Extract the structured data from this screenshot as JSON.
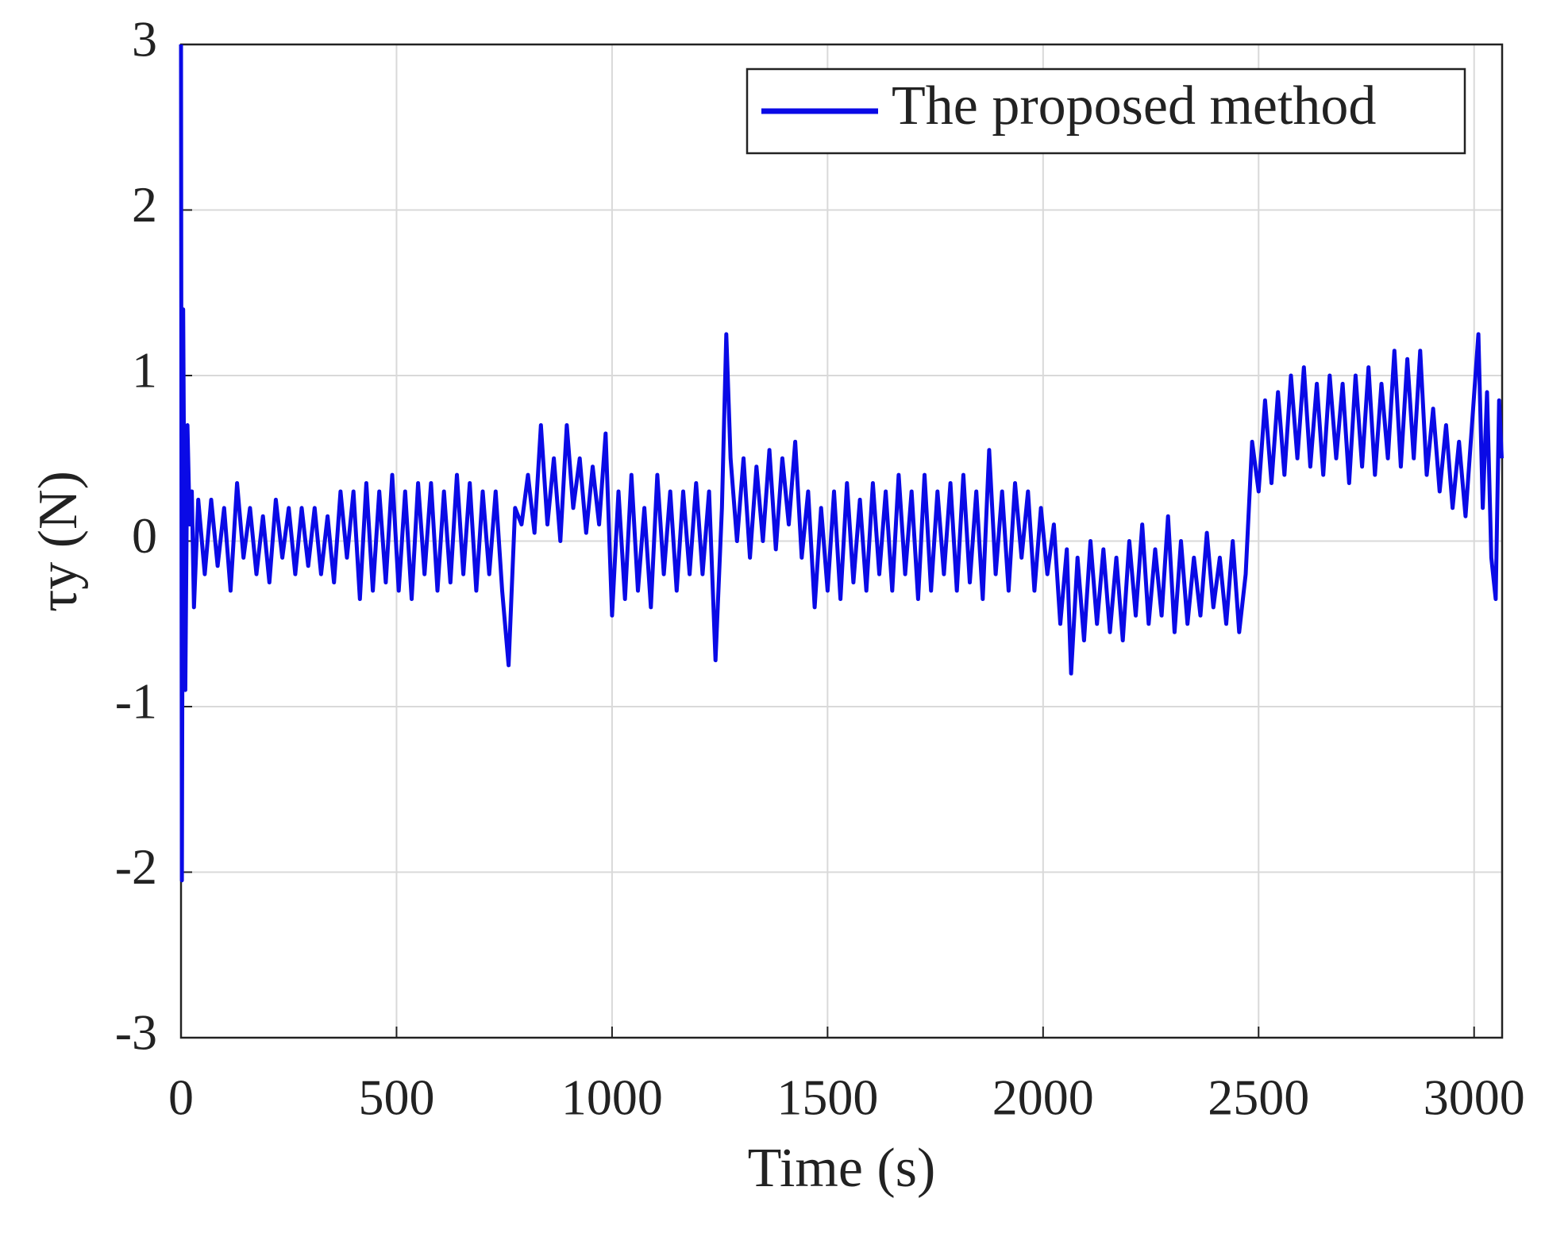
{
  "chart_data": {
    "type": "line",
    "xlabel": "Time (s)",
    "ylabel": "τy (N)",
    "xlim": [
      0,
      3065
    ],
    "ylim": [
      -3,
      3
    ],
    "xticks": [
      0,
      500,
      1000,
      1500,
      2000,
      2500,
      3000
    ],
    "yticks": [
      -3,
      -2,
      -1,
      0,
      1,
      2,
      3
    ],
    "grid": true,
    "legend": "upper right",
    "x": [
      0,
      2,
      5,
      10,
      15,
      20,
      25,
      30,
      40,
      55,
      70,
      85,
      100,
      115,
      130,
      145,
      160,
      175,
      190,
      205,
      220,
      235,
      250,
      265,
      280,
      295,
      310,
      325,
      340,
      355,
      370,
      385,
      400,
      415,
      430,
      445,
      460,
      475,
      490,
      505,
      520,
      535,
      550,
      565,
      580,
      595,
      610,
      625,
      640,
      655,
      670,
      685,
      700,
      715,
      730,
      745,
      760,
      775,
      790,
      805,
      820,
      835,
      850,
      865,
      880,
      895,
      910,
      925,
      940,
      955,
      970,
      985,
      1000,
      1015,
      1030,
      1045,
      1060,
      1075,
      1090,
      1105,
      1120,
      1135,
      1150,
      1165,
      1180,
      1195,
      1210,
      1225,
      1240,
      1255,
      1265,
      1275,
      1290,
      1305,
      1320,
      1335,
      1350,
      1365,
      1380,
      1395,
      1410,
      1425,
      1440,
      1455,
      1470,
      1485,
      1500,
      1515,
      1530,
      1545,
      1560,
      1575,
      1590,
      1605,
      1620,
      1635,
      1650,
      1665,
      1680,
      1695,
      1710,
      1725,
      1740,
      1755,
      1770,
      1785,
      1800,
      1815,
      1830,
      1845,
      1860,
      1875,
      1890,
      1905,
      1920,
      1935,
      1950,
      1965,
      1980,
      1995,
      2010,
      2025,
      2040,
      2055,
      2065,
      2080,
      2095,
      2110,
      2125,
      2140,
      2155,
      2170,
      2185,
      2200,
      2215,
      2230,
      2245,
      2260,
      2275,
      2290,
      2305,
      2320,
      2335,
      2350,
      2365,
      2380,
      2395,
      2410,
      2425,
      2440,
      2455,
      2470,
      2485,
      2500,
      2515,
      2530,
      2545,
      2560,
      2575,
      2590,
      2605,
      2620,
      2635,
      2650,
      2665,
      2680,
      2695,
      2710,
      2725,
      2740,
      2755,
      2770,
      2785,
      2800,
      2815,
      2830,
      2845,
      2860,
      2875,
      2890,
      2905,
      2920,
      2935,
      2950,
      2965,
      2980,
      2995,
      3010,
      3020,
      3030,
      3040,
      3050,
      3058,
      3064
    ],
    "series": [
      {
        "name": "The proposed method",
        "color": "#0a0ae6",
        "values": [
          3,
          -2.05,
          1.4,
          -0.9,
          0.7,
          0.1,
          0.3,
          -0.4,
          0.25,
          -0.2,
          0.25,
          -0.15,
          0.2,
          -0.3,
          0.35,
          -0.1,
          0.2,
          -0.2,
          0.15,
          -0.25,
          0.25,
          -0.1,
          0.2,
          -0.2,
          0.2,
          -0.15,
          0.2,
          -0.2,
          0.15,
          -0.25,
          0.3,
          -0.1,
          0.3,
          -0.35,
          0.35,
          -0.3,
          0.3,
          -0.25,
          0.4,
          -0.3,
          0.3,
          -0.35,
          0.35,
          -0.2,
          0.35,
          -0.3,
          0.3,
          -0.25,
          0.4,
          -0.2,
          0.35,
          -0.3,
          0.3,
          -0.2,
          0.3,
          -0.3,
          -0.75,
          0.2,
          0.1,
          0.4,
          0.05,
          0.7,
          0.1,
          0.5,
          0.0,
          0.7,
          0.2,
          0.5,
          0.05,
          0.45,
          0.1,
          0.65,
          -0.45,
          0.3,
          -0.35,
          0.4,
          -0.3,
          0.2,
          -0.4,
          0.4,
          -0.2,
          0.3,
          -0.3,
          0.3,
          -0.2,
          0.35,
          -0.2,
          0.3,
          -0.72,
          0.2,
          1.25,
          0.5,
          0.0,
          0.5,
          -0.1,
          0.45,
          0.0,
          0.55,
          -0.05,
          0.5,
          0.1,
          0.6,
          -0.1,
          0.3,
          -0.4,
          0.2,
          -0.3,
          0.3,
          -0.35,
          0.35,
          -0.25,
          0.25,
          -0.3,
          0.35,
          -0.2,
          0.3,
          -0.3,
          0.4,
          -0.2,
          0.3,
          -0.35,
          0.4,
          -0.3,
          0.3,
          -0.2,
          0.35,
          -0.3,
          0.4,
          -0.25,
          0.3,
          -0.35,
          0.55,
          -0.2,
          0.3,
          -0.3,
          0.35,
          -0.1,
          0.3,
          -0.3,
          0.2,
          -0.2,
          0.1,
          -0.5,
          -0.05,
          -0.8,
          -0.1,
          -0.6,
          0.0,
          -0.5,
          -0.05,
          -0.55,
          -0.1,
          -0.6,
          0.0,
          -0.45,
          0.1,
          -0.5,
          -0.05,
          -0.45,
          0.15,
          -0.55,
          0.0,
          -0.5,
          -0.1,
          -0.45,
          0.05,
          -0.4,
          -0.1,
          -0.5,
          0.0,
          -0.55,
          -0.2,
          0.6,
          0.3,
          0.85,
          0.35,
          0.9,
          0.4,
          1.0,
          0.5,
          1.05,
          0.45,
          0.95,
          0.4,
          1.0,
          0.5,
          0.95,
          0.35,
          1.0,
          0.45,
          1.05,
          0.4,
          0.95,
          0.5,
          1.15,
          0.45,
          1.1,
          0.5,
          1.15,
          0.4,
          0.8,
          0.3,
          0.7,
          0.2,
          0.6,
          0.15,
          0.7,
          1.25,
          0.2,
          0.9,
          -0.1,
          -0.35,
          0.85,
          0.5
        ]
      }
    ]
  }
}
